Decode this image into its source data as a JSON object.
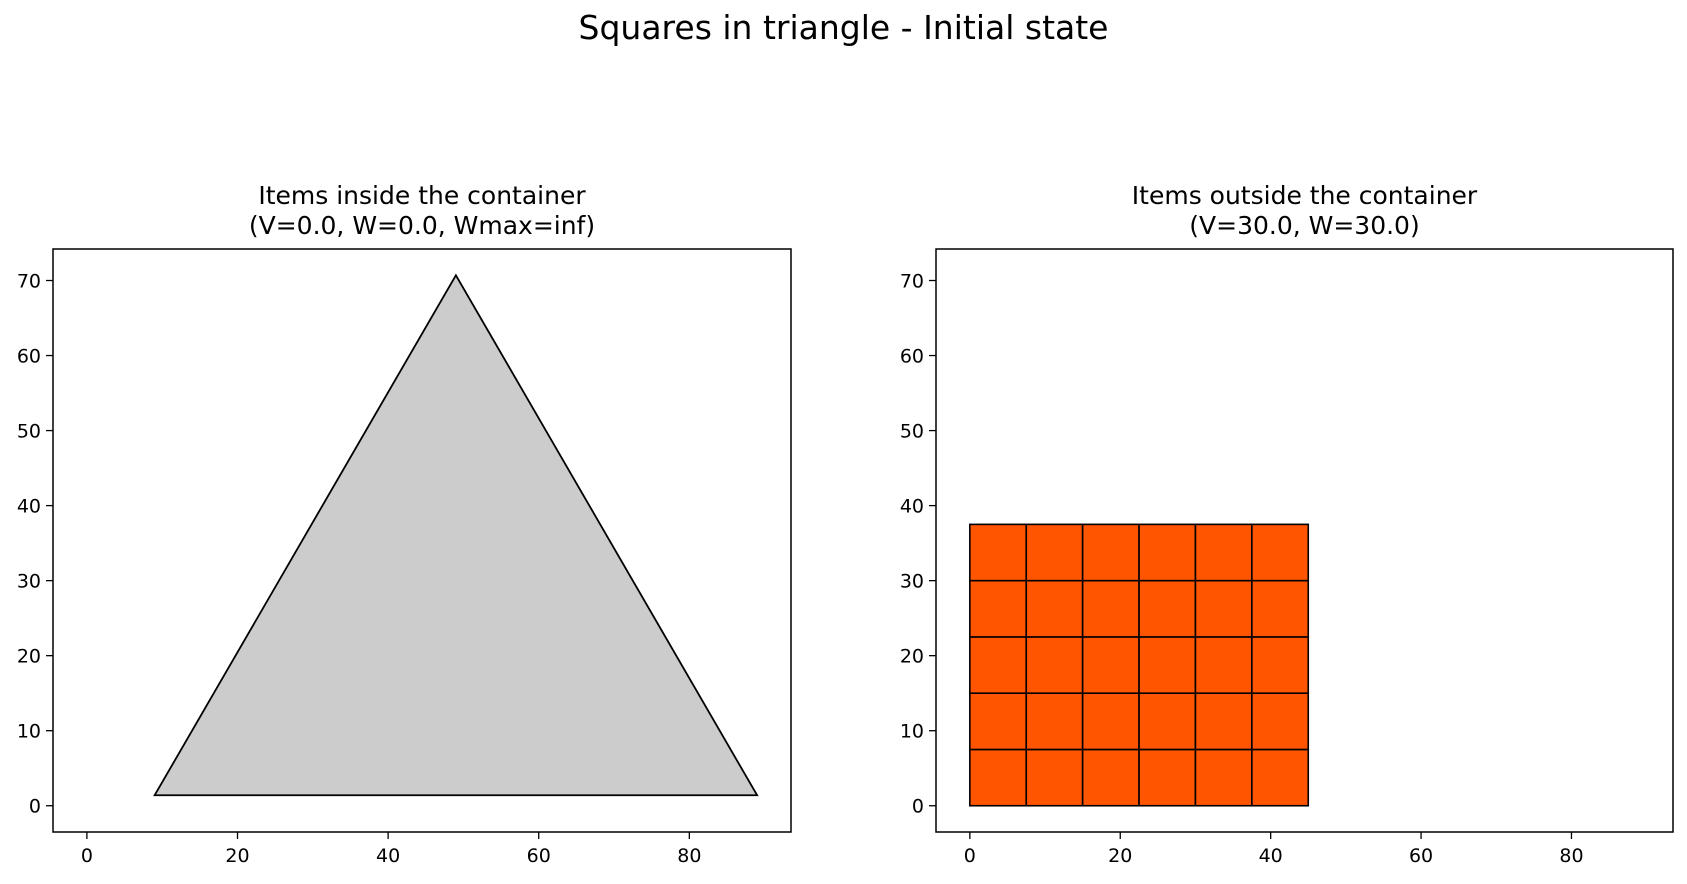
{
  "figure": {
    "title": "Squares in triangle - Initial state"
  },
  "chart_data": [
    {
      "type": "polygon",
      "title_line1": "Items inside the container",
      "title_line2": "(V=0.0, W=0.0, Wmax=inf)",
      "xlim": [
        -4.5,
        93.5
      ],
      "ylim": [
        -3.5,
        74.2
      ],
      "xticks": [
        0,
        20,
        40,
        60,
        80
      ],
      "yticks": [
        0,
        10,
        20,
        30,
        40,
        50,
        60,
        70
      ],
      "container": {
        "vertices": [
          [
            9,
            1.4
          ],
          [
            49,
            70.7
          ],
          [
            89,
            1.4
          ]
        ],
        "fill": "#cccccc",
        "stroke": "#000000"
      },
      "items": []
    },
    {
      "type": "polygon",
      "title_line1": "Items outside the container",
      "title_line2": "(V=30.0, W=30.0)",
      "xlim": [
        -4.5,
        93.5
      ],
      "ylim": [
        -3.5,
        74.2
      ],
      "xticks": [
        0,
        20,
        40,
        60,
        80
      ],
      "yticks": [
        0,
        10,
        20,
        30,
        40,
        50,
        60,
        70
      ],
      "items": {
        "shape": "square",
        "side": 7.5,
        "columns": 6,
        "rows": 5,
        "origin": [
          0,
          0
        ],
        "fill": "#ff5500",
        "stroke": "#000000"
      }
    }
  ]
}
